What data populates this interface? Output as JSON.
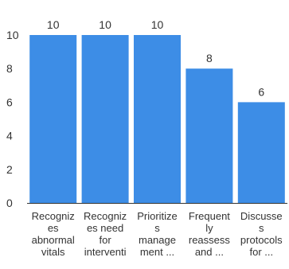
{
  "chart_data": {
    "type": "bar",
    "categories": [
      [
        "Recogniz",
        "es",
        "abnormal",
        "vitals"
      ],
      [
        "Recogniz",
        "es need",
        "for",
        "interventi"
      ],
      [
        "Prioritize",
        "s",
        "manage",
        "ment ..."
      ],
      [
        "Frequent",
        "ly",
        "reassess",
        "and ..."
      ],
      [
        "Discusse",
        "s",
        "protocols",
        "for ..."
      ]
    ],
    "values": [
      10,
      10,
      10,
      8,
      6
    ],
    "ylim": [
      0,
      10
    ],
    "yticks": [
      0,
      2,
      4,
      6,
      8,
      10
    ],
    "grid": false,
    "bar_color": "#3d8de6",
    "title": "",
    "xlabel": "",
    "ylabel": ""
  }
}
